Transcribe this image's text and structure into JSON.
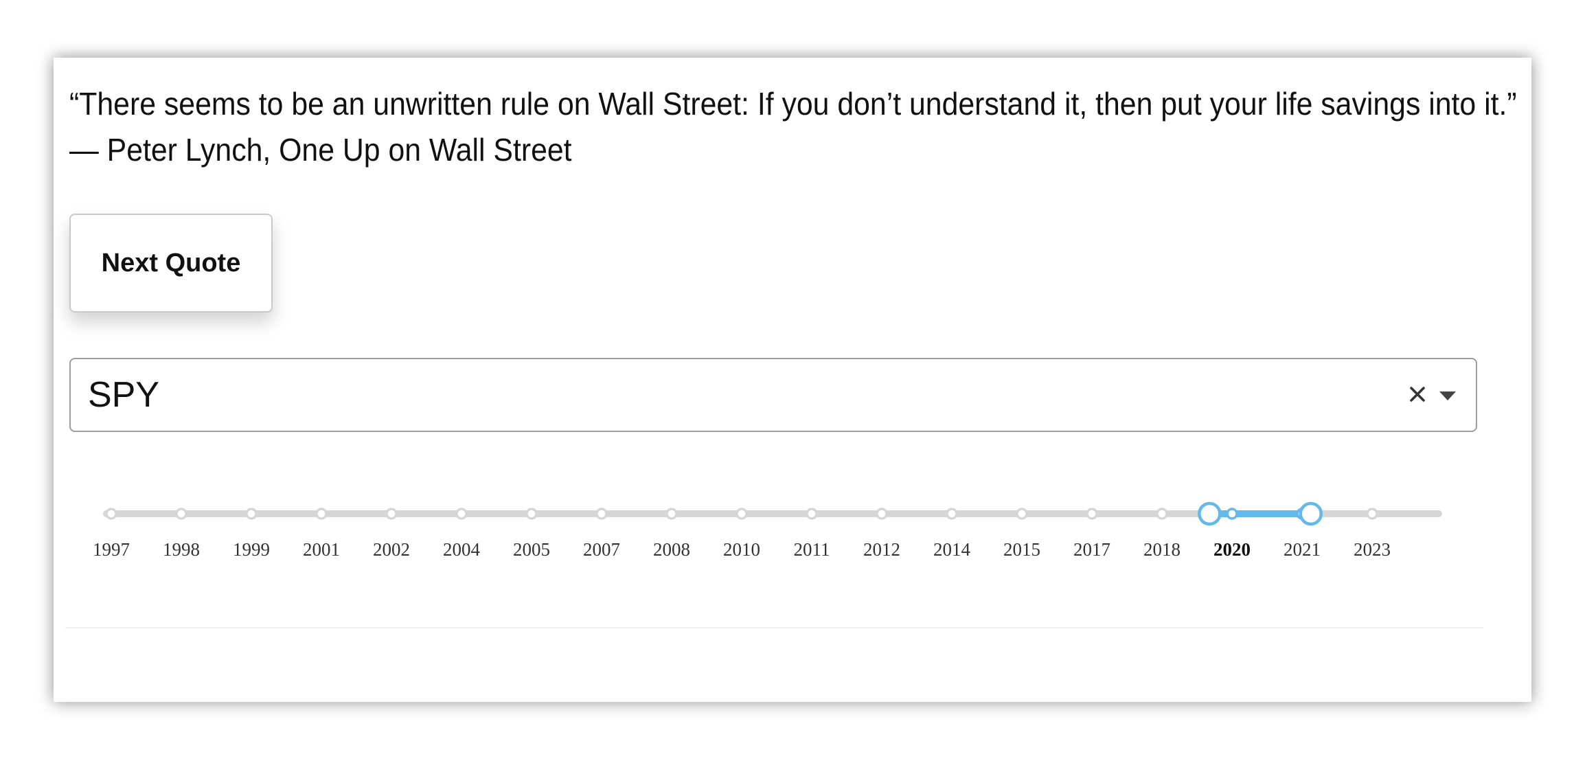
{
  "quote": {
    "text": "“There seems to be an unwritten rule on Wall Street: If you don’t understand it, then put your life savings into it.”",
    "attribution": "— Peter Lynch, One Up on Wall Street"
  },
  "next_button": {
    "label": "Next Quote"
  },
  "ticker_select": {
    "value": "SPY",
    "clear_icon": "close-icon",
    "dropdown_icon": "caret-down-icon"
  },
  "year_slider": {
    "marks": [
      "1997",
      "1998",
      "1999",
      "2001",
      "2002",
      "2004",
      "2005",
      "2007",
      "2008",
      "2010",
      "2011",
      "2012",
      "2014",
      "2015",
      "2017",
      "2018",
      "2020",
      "2021",
      "2023"
    ],
    "range_start_fraction": 0.828,
    "range_end_fraction": 0.904,
    "active_mark": "2020",
    "colors": {
      "track": "#d6d6d6",
      "range": "#63b8ec",
      "dot_border": "#d6d6d6",
      "handle_border": "#63b8ec"
    }
  }
}
